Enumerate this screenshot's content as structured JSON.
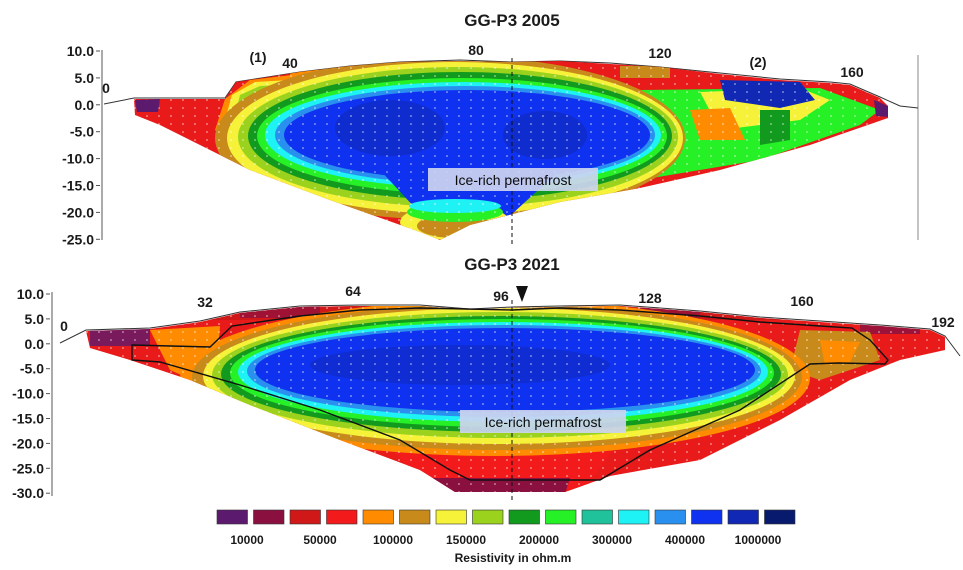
{
  "figure": {
    "panel_top": {
      "title": "GG-P3 2005",
      "y_ticks": [
        "10.0",
        "5.0",
        "0.0",
        "-5.0",
        "-10.0",
        "-15.0",
        "-20.0",
        "-25.0"
      ],
      "distance_labels": [
        "0",
        "40",
        "80",
        "120",
        "160"
      ],
      "markers": [
        "(1)",
        "(2)"
      ],
      "annotation": "Ice-rich permafrost"
    },
    "panel_bottom": {
      "title": "GG-P3 2021",
      "y_ticks": [
        "10.0",
        "5.0",
        "0.0",
        "-5.0",
        "-10.0",
        "-15.0",
        "-20.0",
        "-25.0",
        "-30.0"
      ],
      "distance_labels": [
        "0",
        "32",
        "64",
        "96",
        "128",
        "160",
        "192"
      ],
      "annotation": "Ice-rich permafrost"
    },
    "legend": {
      "colors": [
        "#5c1a6e",
        "#8a1040",
        "#d01818",
        "#f21a1a",
        "#ff8c00",
        "#c88a1a",
        "#f6f23a",
        "#9ad21e",
        "#129a1e",
        "#26f026",
        "#1fc29a",
        "#1ef2f4",
        "#2a90f0",
        "#0f32f0",
        "#1028b4",
        "#081a6e"
      ],
      "labels": [
        "10000",
        "50000",
        "100000",
        "150000",
        "200000",
        "300000",
        "400000",
        "1000000"
      ],
      "title": "Resistivity in ohm.m"
    }
  }
}
